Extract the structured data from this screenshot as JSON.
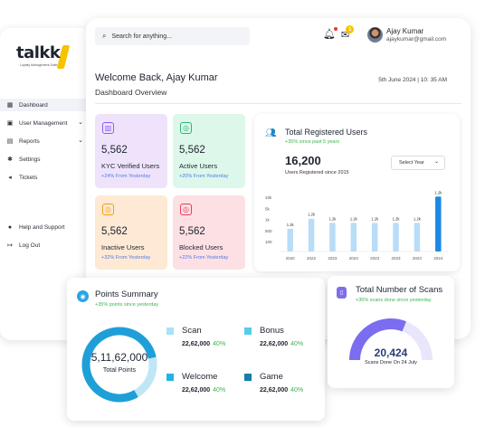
{
  "brand": {
    "name": "talkk",
    "tagline": "Loyalty Management Suite"
  },
  "sidebar": {
    "items": [
      {
        "label": "Dashboard",
        "icon": "grid-icon",
        "active": true
      },
      {
        "label": "User Management",
        "icon": "user-icon",
        "expandable": true
      },
      {
        "label": "Reports",
        "icon": "report-icon",
        "expandable": true
      },
      {
        "label": "Settings",
        "icon": "gear-icon"
      },
      {
        "label": "Tickets",
        "icon": "megaphone-icon"
      }
    ],
    "support_label": "Help and Support",
    "logout_label": "Log Out"
  },
  "header": {
    "search_placeholder": "Search for anything...",
    "mail_badge": "1",
    "user_name": "Ajay Kumar",
    "user_email": "ajaykumar@gmail.com"
  },
  "welcome": {
    "title": "Welcome Back, Ajay Kumar",
    "subtitle": "Dashboard Overview",
    "datetime": "5th June 2024 | 10: 35 AM"
  },
  "stats": [
    {
      "value": "5,562",
      "label": "KYC Verified Users",
      "change": "+24% From Yesterday",
      "bg": "#efe3fb",
      "accent": "#8b5cf6",
      "change_color": "#4f7be8"
    },
    {
      "value": "5,562",
      "label": "Active Users",
      "change": "+20% From Yesterday",
      "bg": "#ddf7ea",
      "accent": "#2bb673",
      "change_color": "#4f7be8"
    },
    {
      "value": "5,562",
      "label": "Inactive Users",
      "change": "+32% From Yesterday",
      "bg": "#fde9d4",
      "accent": "#f59e0b",
      "change_color": "#4f7be8"
    },
    {
      "value": "5,562",
      "label": "Blocked Users",
      "change": "+22% From Yesterday",
      "bg": "#fde0e3",
      "accent": "#e53e5a",
      "change_color": "#4f7be8"
    }
  ],
  "registered": {
    "title": "Total Registered Users",
    "subtitle": "+35% since past 5 years",
    "total": "16,200",
    "since": "Users Registered since 2015",
    "select_label": "Select Year"
  },
  "chart_data": {
    "type": "bar",
    "categories": [
      "2020",
      "2022",
      "2023",
      "2023",
      "2023",
      "2023",
      "2023",
      "2024"
    ],
    "values": [
      1200,
      1200,
      1200,
      1200,
      1200,
      1200,
      1200,
      1200
    ],
    "value_labels": [
      "1.2k",
      "1.2k",
      "1.2k",
      "1.2k",
      "1.2k",
      "1.2k",
      "1.2k",
      "1.2k"
    ],
    "y_ticks": [
      "10k",
      "5k",
      "1k",
      "500",
      "100"
    ],
    "bar_heights_fraction": [
      0.38,
      0.55,
      0.48,
      0.48,
      0.48,
      0.48,
      0.48,
      0.92
    ],
    "bar_colors": [
      "#b9dcf7",
      "#b9dcf7",
      "#b9dcf7",
      "#b9dcf7",
      "#b9dcf7",
      "#b9dcf7",
      "#b9dcf7",
      "#1e88e5"
    ],
    "grid": true,
    "title": "",
    "xlabel": "",
    "ylabel": ""
  },
  "points": {
    "title": "Points Summary",
    "subtitle": "+35% points since yesterday",
    "total": "5,11,62,000",
    "total_label": "Total Points",
    "ring_fraction": 0.8,
    "ring_color": "#1e9fd8",
    "ring_track": "#bfe6f7",
    "legend": [
      {
        "name": "Scan",
        "amount": "22,62,000",
        "pct": "40%",
        "color": "#a8e3f7"
      },
      {
        "name": "Bonus",
        "amount": "22,62,000",
        "pct": "40%",
        "color": "#55cde8"
      },
      {
        "name": "Welcome",
        "amount": "22,62,000",
        "pct": "40%",
        "color": "#1fb4e6"
      },
      {
        "name": "Game",
        "amount": "22,62,000",
        "pct": "40%",
        "color": "#157fa6"
      }
    ]
  },
  "scans": {
    "title": "Total Number of Scans",
    "subtitle": "+35% scans done since yesterday",
    "value": "20,424",
    "label": "Scans Done On 24 July",
    "gauge_fraction": 0.62,
    "gauge_color": "#7b6cf0",
    "gauge_track": "#e9e6fb"
  }
}
